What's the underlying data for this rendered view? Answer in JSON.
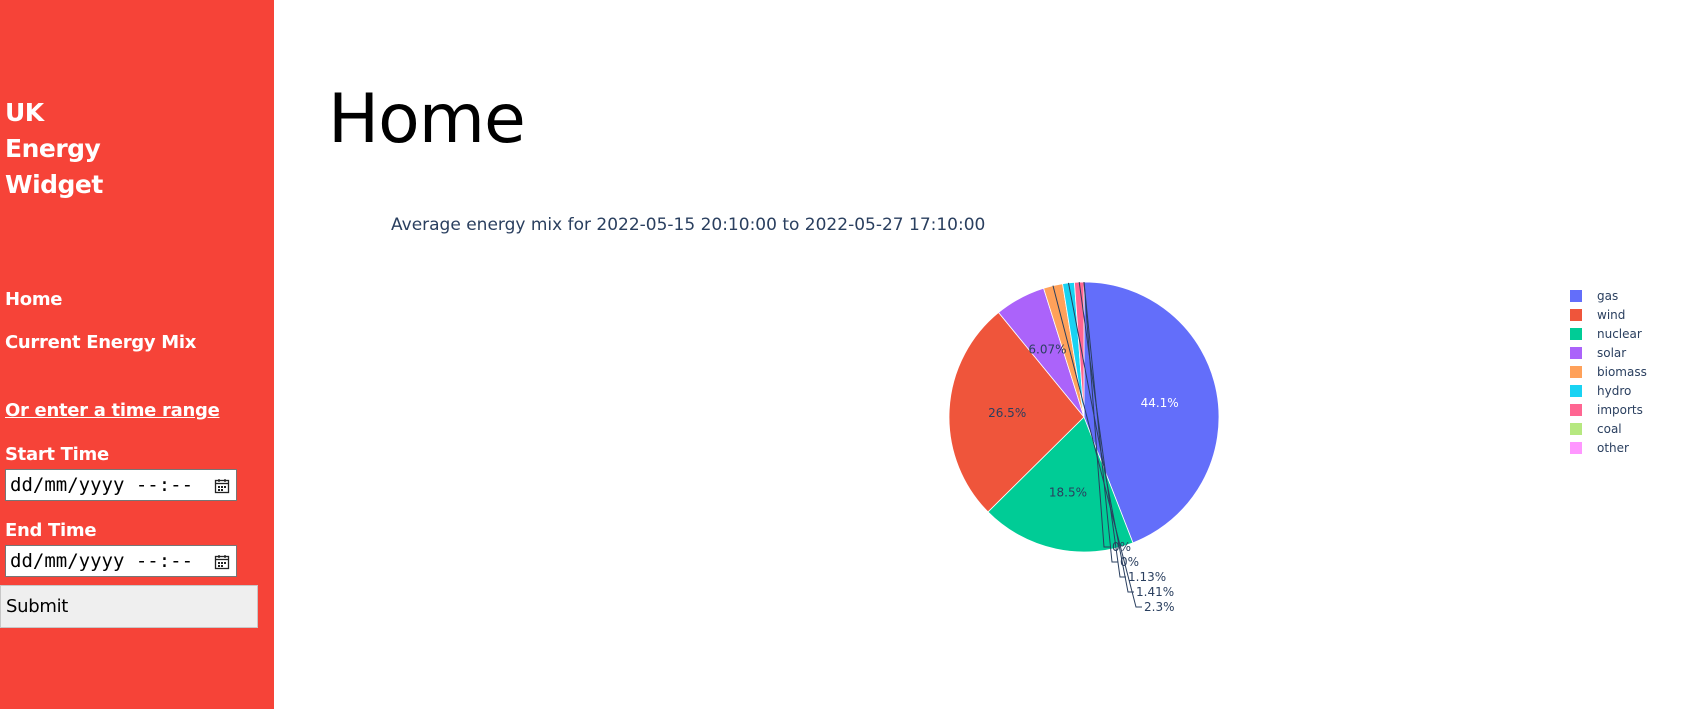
{
  "sidebar": {
    "brand_lines": [
      "UK",
      "Energy",
      "Widget"
    ],
    "nav": [
      "Home",
      "Current Energy Mix"
    ],
    "range_link": "Or enter a time range",
    "start_label": "Start Time",
    "start_placeholder": "dd/mm/yyyy --:--",
    "end_label": "End Time",
    "end_placeholder": "dd/mm/yyyy --:--",
    "submit_label": "Submit"
  },
  "main": {
    "page_title": "Home"
  },
  "chart_data": {
    "type": "pie",
    "title": "Average energy mix for 2022-05-15 20:10:00 to 2022-05-27 17:10:00",
    "legend_position": "right",
    "slices": [
      {
        "label": "gas",
        "value": 44.1,
        "text": "44.1%",
        "color": "#636efa"
      },
      {
        "label": "nuclear",
        "value": 18.5,
        "text": "18.5%",
        "color": "#00cc96"
      },
      {
        "label": "wind",
        "value": 26.5,
        "text": "26.5%",
        "color": "#ef553b"
      },
      {
        "label": "solar",
        "value": 6.07,
        "text": "6.07%",
        "color": "#ab63fa"
      },
      {
        "label": "biomass",
        "value": 2.3,
        "text": "2.3%",
        "color": "#ffa15a"
      },
      {
        "label": "hydro",
        "value": 1.41,
        "text": "1.41%",
        "color": "#19d3f3"
      },
      {
        "label": "imports",
        "value": 1.13,
        "text": "1.13%",
        "color": "#ff6692"
      },
      {
        "label": "coal",
        "value": 0,
        "text": "0%",
        "color": "#b6e880"
      },
      {
        "label": "other",
        "value": 0,
        "text": "0%",
        "color": "#ff97ff"
      }
    ],
    "legend": [
      {
        "label": "gas",
        "color": "#636efa"
      },
      {
        "label": "wind",
        "color": "#ef553b"
      },
      {
        "label": "nuclear",
        "color": "#00cc96"
      },
      {
        "label": "solar",
        "color": "#ab63fa"
      },
      {
        "label": "biomass",
        "color": "#ffa15a"
      },
      {
        "label": "hydro",
        "color": "#19d3f3"
      },
      {
        "label": "imports",
        "color": "#ff6692"
      },
      {
        "label": "coal",
        "color": "#b6e880"
      },
      {
        "label": "other",
        "color": "#ff97ff"
      }
    ]
  }
}
